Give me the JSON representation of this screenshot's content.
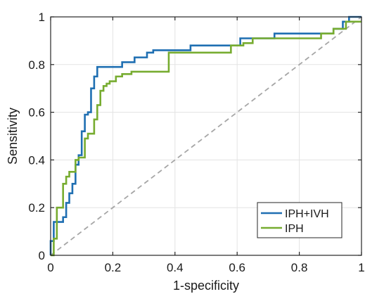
{
  "chart_data": {
    "type": "line",
    "title": "",
    "xlabel": "1-specificity",
    "ylabel": "Sensitivity",
    "xlim": [
      0,
      1
    ],
    "ylim": [
      0,
      1
    ],
    "xticks": [
      0,
      0.2,
      0.4,
      0.6,
      0.8,
      1
    ],
    "yticks": [
      0,
      0.2,
      0.4,
      0.6,
      0.8,
      1
    ],
    "xtick_labels": [
      "0",
      "0.2",
      "0.4",
      "0.6",
      "0.8",
      "1"
    ],
    "ytick_labels": [
      "0",
      "0.2",
      "0.4",
      "0.6",
      "0.8",
      "1"
    ],
    "grid": true,
    "legend_position": "bottom-right",
    "reference_line": {
      "style": "dashed",
      "color": "#a6a6a6",
      "x": [
        0,
        1
      ],
      "y": [
        0,
        1
      ]
    },
    "series": [
      {
        "name": "IPH+IVH",
        "color": "#1f6fb2",
        "x": [
          0,
          0,
          0.01,
          0.01,
          0.04,
          0.04,
          0.05,
          0.05,
          0.06,
          0.06,
          0.07,
          0.07,
          0.08,
          0.08,
          0.09,
          0.09,
          0.1,
          0.1,
          0.11,
          0.11,
          0.12,
          0.12,
          0.13,
          0.13,
          0.14,
          0.14,
          0.15,
          0.15,
          0.16,
          0.16,
          0.23,
          0.23,
          0.27,
          0.27,
          0.31,
          0.31,
          0.33,
          0.33,
          0.36,
          0.36,
          0.45,
          0.45,
          0.58,
          0.58,
          0.61,
          0.61,
          0.72,
          0.72,
          0.84,
          0.84,
          0.91,
          0.91,
          0.94,
          0.94,
          0.96,
          0.96,
          1
        ],
        "y": [
          0,
          0.06,
          0.06,
          0.14,
          0.14,
          0.16,
          0.16,
          0.22,
          0.22,
          0.26,
          0.26,
          0.3,
          0.3,
          0.38,
          0.38,
          0.42,
          0.42,
          0.52,
          0.52,
          0.59,
          0.59,
          0.6,
          0.6,
          0.7,
          0.7,
          0.75,
          0.75,
          0.79,
          0.79,
          0.79,
          0.79,
          0.81,
          0.81,
          0.83,
          0.83,
          0.85,
          0.85,
          0.86,
          0.86,
          0.86,
          0.86,
          0.88,
          0.88,
          0.88,
          0.88,
          0.91,
          0.91,
          0.93,
          0.93,
          0.93,
          0.93,
          0.95,
          0.95,
          0.98,
          0.98,
          1,
          1
        ]
      },
      {
        "name": "IPH",
        "color": "#77ac30",
        "x": [
          0,
          0,
          0.01,
          0.01,
          0.02,
          0.02,
          0.03,
          0.03,
          0.04,
          0.04,
          0.05,
          0.05,
          0.06,
          0.06,
          0.08,
          0.08,
          0.09,
          0.09,
          0.11,
          0.11,
          0.12,
          0.12,
          0.14,
          0.14,
          0.15,
          0.15,
          0.16,
          0.16,
          0.17,
          0.17,
          0.18,
          0.18,
          0.19,
          0.19,
          0.21,
          0.21,
          0.23,
          0.23,
          0.26,
          0.26,
          0.31,
          0.31,
          0.38,
          0.38,
          0.4,
          0.4,
          0.58,
          0.58,
          0.62,
          0.62,
          0.65,
          0.65,
          0.87,
          0.87,
          0.91,
          0.91,
          0.95,
          0.95,
          1
        ],
        "y": [
          0,
          0,
          0,
          0.07,
          0.07,
          0.2,
          0.2,
          0.2,
          0.2,
          0.3,
          0.3,
          0.33,
          0.33,
          0.35,
          0.35,
          0.4,
          0.4,
          0.41,
          0.41,
          0.49,
          0.49,
          0.51,
          0.51,
          0.57,
          0.57,
          0.63,
          0.63,
          0.69,
          0.69,
          0.71,
          0.71,
          0.72,
          0.72,
          0.73,
          0.73,
          0.75,
          0.75,
          0.76,
          0.76,
          0.77,
          0.77,
          0.77,
          0.77,
          0.85,
          0.85,
          0.85,
          0.85,
          0.88,
          0.88,
          0.89,
          0.89,
          0.91,
          0.91,
          0.93,
          0.93,
          0.95,
          0.95,
          0.98,
          0.98
        ]
      }
    ]
  }
}
